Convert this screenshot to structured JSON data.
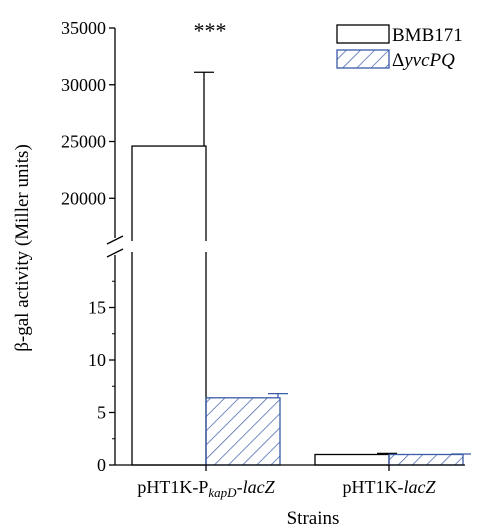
{
  "chart_data": {
    "type": "bar",
    "xlabel": "Strains",
    "ylabel": "β-gal activity (Miller units)",
    "categories": [
      {
        "parts": [
          {
            "text": "pHT1K-P",
            "style": "normal"
          },
          {
            "text": "kapD",
            "style": "sub-italic"
          },
          {
            "text": "-",
            "style": "normal"
          },
          {
            "text": "lacZ",
            "style": "italic"
          }
        ]
      },
      {
        "parts": [
          {
            "text": "pHT1K-",
            "style": "normal"
          },
          {
            "text": "lacZ",
            "style": "italic"
          }
        ]
      }
    ],
    "series": [
      {
        "name": "BMB171",
        "fill": "none",
        "color": "#000000",
        "values": [
          24600,
          1.0
        ],
        "errors": [
          6500,
          0.1
        ]
      },
      {
        "name": "ΔyvcPQ",
        "name_parts": [
          {
            "text": "Δ",
            "style": "normal"
          },
          {
            "text": "yvcPQ",
            "style": "italic"
          }
        ],
        "fill": "hatch",
        "color": "#3a5ba8",
        "values": [
          6.4,
          1.0
        ],
        "errors": [
          0.4,
          0.05
        ]
      }
    ],
    "axis_break": {
      "lower_range": [
        0,
        20
      ],
      "upper_range": [
        16500,
        35000
      ]
    },
    "lower_ticks": [
      0,
      5,
      10,
      15
    ],
    "upper_ticks": [
      20000,
      25000,
      30000,
      35000
    ],
    "annotations": [
      {
        "text": "***",
        "category_index": 0
      }
    ],
    "legend_position": "top-right",
    "grid": false
  }
}
